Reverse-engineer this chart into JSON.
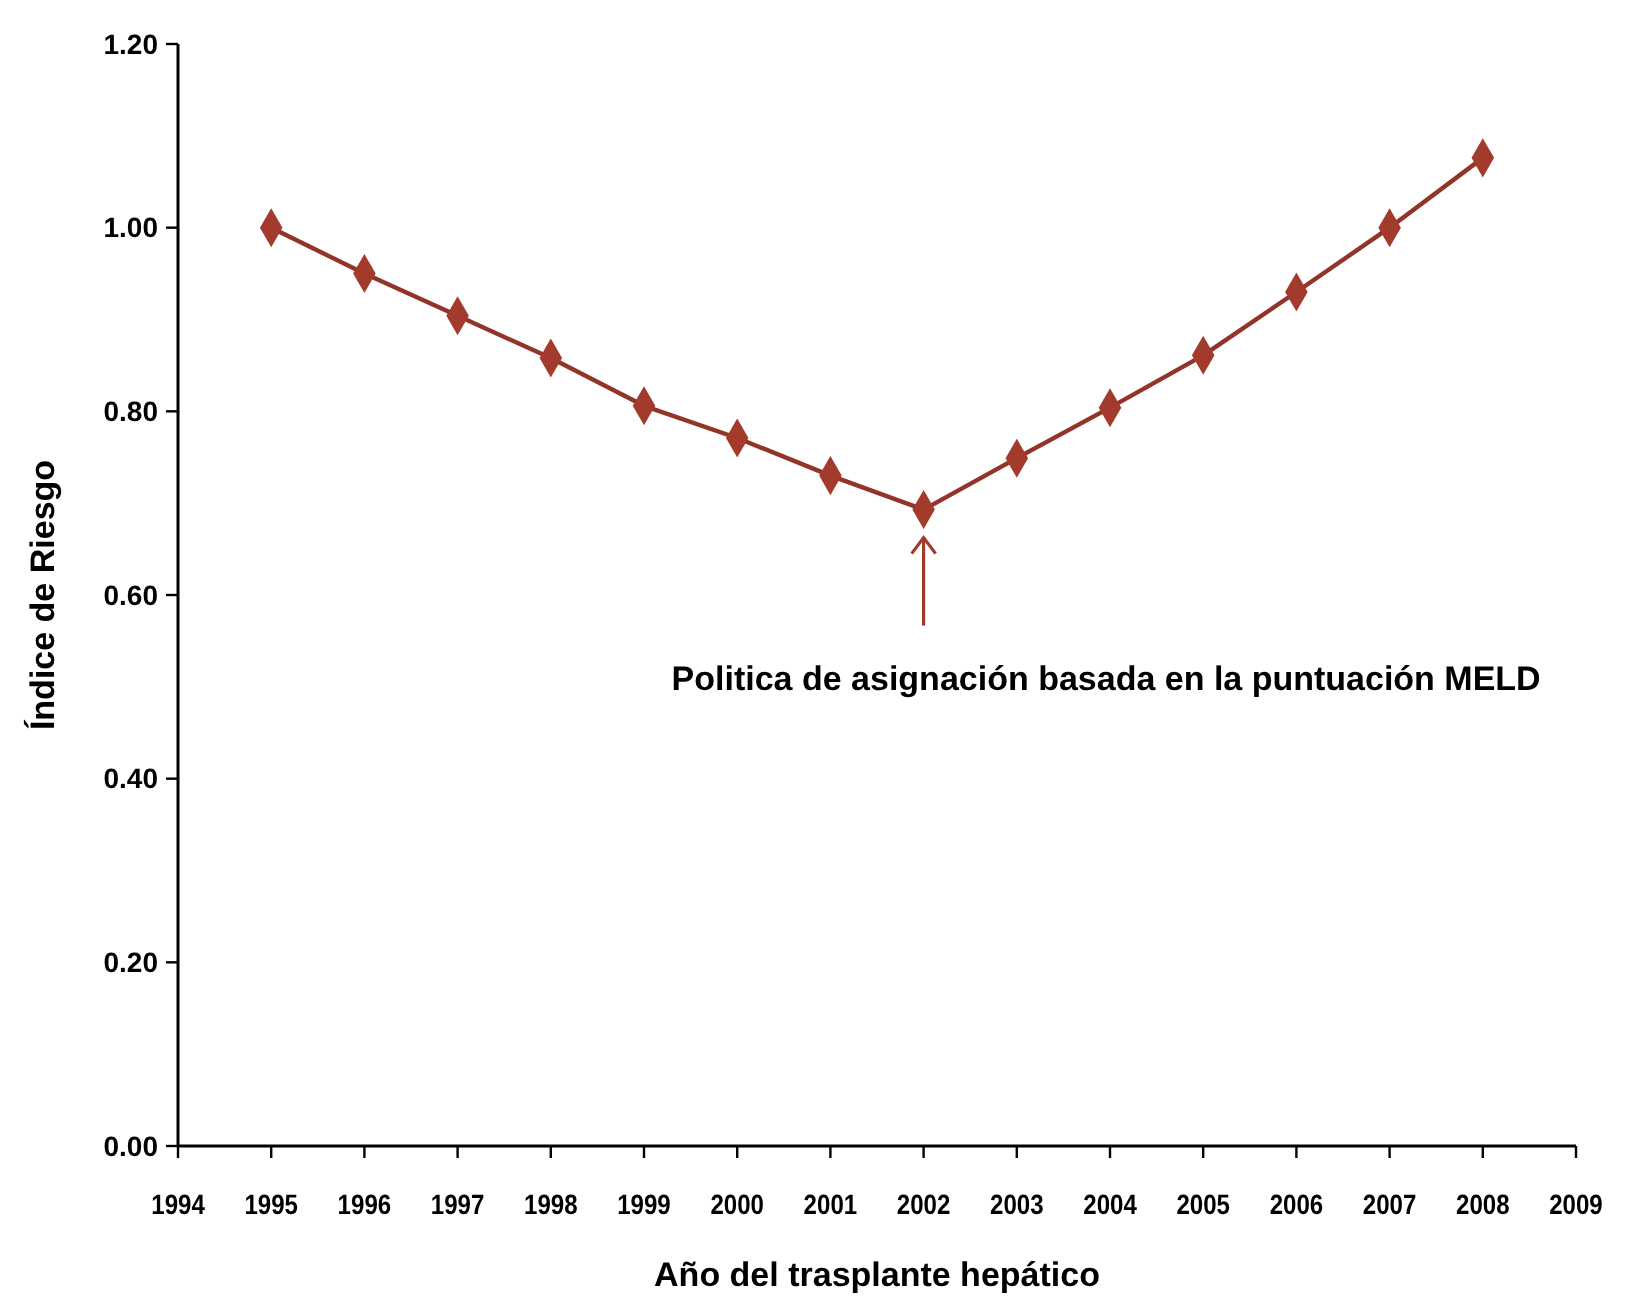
{
  "chart_data": {
    "type": "line",
    "xlabel": "Año del trasplante hepático",
    "ylabel": "Índice de Riesgo",
    "x": [
      1995,
      1996,
      1997,
      1998,
      1999,
      2000,
      2001,
      2002,
      2003,
      2004,
      2005,
      2006,
      2007,
      2008
    ],
    "series": [
      {
        "color": "#a33b2c",
        "values": [
          1.0,
          0.95,
          0.904,
          0.858,
          0.806,
          0.771,
          0.73,
          0.693,
          0.749,
          0.804,
          0.861,
          0.93,
          1.0,
          1.076
        ]
      }
    ],
    "xlim": [
      1994,
      2009
    ],
    "xticks": [
      1994,
      1995,
      1996,
      1997,
      1998,
      1999,
      2000,
      2001,
      2002,
      2003,
      2004,
      2005,
      2006,
      2007,
      2008,
      2009
    ],
    "ylim": [
      0,
      1.2
    ],
    "yticks": [
      {
        "value": 0,
        "label": "0.00"
      },
      {
        "value": 0.2,
        "label": "0.20"
      },
      {
        "value": 0.4,
        "label": "0.40"
      },
      {
        "value": 0.6,
        "label": "0.60"
      },
      {
        "value": 0.8,
        "label": "0.80"
      },
      {
        "value": 1,
        "label": "1.00"
      },
      {
        "value": 1.2,
        "label": "1.20"
      }
    ],
    "annotations": [
      "Politica de asignación basada en la puntuación MELD"
    ],
    "marker": "diamond",
    "line_style": "solid",
    "grid": false
  }
}
